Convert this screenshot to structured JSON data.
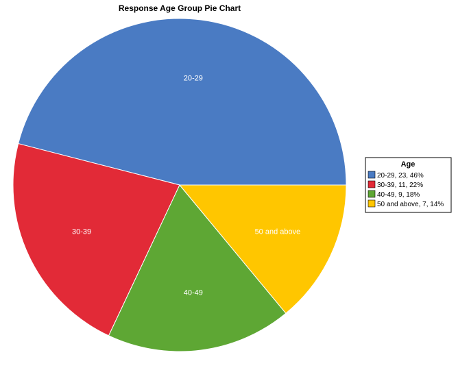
{
  "chart_data": {
    "type": "pie",
    "title": "Response Age Group Pie Chart",
    "slices": [
      {
        "label": "20-29",
        "value": 23,
        "percent": "46%",
        "color": "#4a7bc3",
        "legend": "20-29, 23, 46%"
      },
      {
        "label": "30-39",
        "value": 11,
        "percent": "22%",
        "color": "#e22a37",
        "legend": "30-39, 11, 22%"
      },
      {
        "label": "40-49",
        "value": 9,
        "percent": "18%",
        "color": "#5ea734",
        "legend": "40-49, 9, 18%"
      },
      {
        "label": "50 and above",
        "value": 7,
        "percent": "14%",
        "color": "#ffc600",
        "legend": "50 and above, 7, 14%"
      }
    ],
    "legend": {
      "title": "Age",
      "placement": "right"
    }
  }
}
